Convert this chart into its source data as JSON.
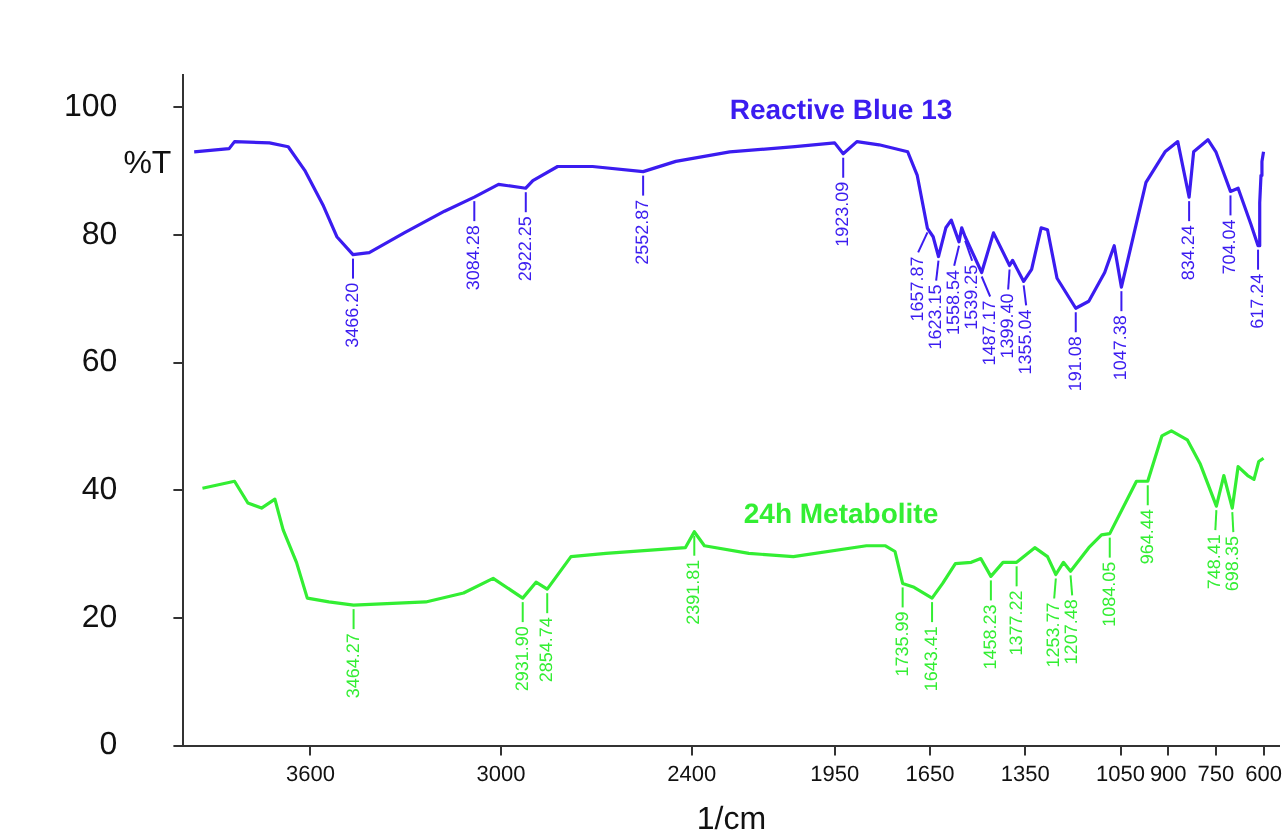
{
  "chart_data": {
    "type": "line",
    "xlabel": "1/cm",
    "ylabel": "%T",
    "xlim": [
      4000,
      550
    ],
    "xticks": [
      3600,
      3000,
      2400,
      1950,
      1650,
      1350,
      1050,
      900,
      750,
      600
    ],
    "ylim": [
      0,
      105
    ],
    "yticks": [
      0,
      20,
      40,
      60,
      80,
      100
    ],
    "grid": false,
    "legend": false,
    "marker": "none",
    "line_style": "solid",
    "series": [
      {
        "name": "Reactive Blue 13",
        "color": "#3b1cf0",
        "x": [
          3966,
          3856,
          3839,
          3729,
          3670,
          3618,
          3559,
          3517,
          3466.2,
          3415,
          3305,
          3178,
          3084.28,
          3008,
          2922.25,
          2900,
          2822,
          2712,
          2552.87,
          2450,
          2280,
          2075,
          1950,
          1923.09,
          1880,
          1810,
          1720,
          1690,
          1657.87,
          1640,
          1623.15,
          1600,
          1583,
          1558.54,
          1550,
          1539.25,
          1487.17,
          1450,
          1399.4,
          1390,
          1355.04,
          1330,
          1300,
          1280,
          1250,
          1191.08,
          1150,
          1100,
          1070,
          1047.38,
          1010,
          970,
          910,
          870,
          834.24,
          820,
          775,
          750,
          704.04,
          680,
          640,
          617.24,
          612,
          608,
          605,
          600
        ],
        "values": [
          93,
          93.5,
          94.6,
          94.4,
          93.8,
          90.1,
          84.5,
          79.7,
          76.9,
          77.2,
          80.3,
          83.7,
          85.9,
          87.9,
          87.3,
          88.5,
          90.7,
          90.7,
          89.9,
          91.5,
          93,
          93.8,
          94.4,
          92.7,
          94.6,
          94.1,
          93,
          89.3,
          81,
          79.7,
          76.6,
          81.1,
          82.3,
          78.9,
          81.1,
          79.7,
          74.1,
          80.3,
          75.2,
          76,
          72.7,
          74.6,
          81.1,
          80.8,
          73.2,
          68.5,
          69.6,
          74.1,
          78.3,
          71.8,
          79.7,
          88.2,
          93,
          94.6,
          85.9,
          93,
          94.9,
          93,
          86.8,
          87.3,
          81.7,
          78.3,
          85,
          89.3,
          91.5,
          93
        ]
      },
      {
        "name": "24h Metabolite",
        "color": "#33ee33",
        "x": [
          3940,
          3839,
          3797,
          3754,
          3712,
          3686,
          3644,
          3610,
          3542,
          3464.27,
          3237,
          3118,
          3025,
          2931.9,
          2890,
          2854.74,
          2780,
          2670,
          2420,
          2391.81,
          2360,
          2220,
          2080,
          1850,
          1790,
          1760,
          1735.99,
          1700,
          1643.41,
          1610,
          1570,
          1520,
          1490,
          1458.23,
          1420,
          1377.22,
          1320,
          1280,
          1253.77,
          1230,
          1207.48,
          1150,
          1110,
          1084.05,
          1000,
          964.44,
          920,
          890,
          840,
          800,
          748.41,
          725,
          698.35,
          680,
          650,
          630,
          615,
          600
        ],
        "values": [
          40.3,
          41.4,
          38,
          37.2,
          38.6,
          33.8,
          28.7,
          23.1,
          22.5,
          22,
          22.5,
          23.9,
          26.2,
          23.1,
          25.6,
          24.5,
          29.6,
          30.1,
          31,
          33.5,
          31.3,
          30.1,
          29.6,
          31.3,
          31.3,
          30.4,
          25.4,
          24.8,
          23.1,
          25.4,
          28.5,
          28.7,
          29.3,
          26.5,
          28.7,
          28.7,
          31,
          29.6,
          26.8,
          28.7,
          27.3,
          31,
          33,
          33.2,
          41.4,
          41.4,
          48.5,
          49.3,
          47.9,
          44.2,
          37.5,
          42.3,
          37.2,
          43.7,
          42.3,
          41.7,
          44.5,
          45
        ]
      }
    ],
    "annotations": [
      {
        "text": "3466.20",
        "x": 3466.2,
        "y": 76.9
      },
      {
        "text": "3084.28",
        "x": 3084.28,
        "y": 85.9
      },
      {
        "text": "2922.25",
        "x": 2922.25,
        "y": 87.3
      },
      {
        "text": "2552.87",
        "x": 2552.87,
        "y": 89.9
      },
      {
        "text": "1923.09",
        "x": 1923.09,
        "y": 92.7
      },
      {
        "text": "1657.87",
        "x": 1657.87,
        "y": 81
      },
      {
        "text": "1623.15",
        "x": 1623.15,
        "y": 76.6
      },
      {
        "text": "1558.54",
        "x": 1558.54,
        "y": 78.9
      },
      {
        "text": "1539.25",
        "x": 1539.25,
        "y": 79.7
      },
      {
        "text": "1487.17",
        "x": 1487.17,
        "y": 74.1
      },
      {
        "text": "1399.40",
        "x": 1399.4,
        "y": 75.2
      },
      {
        "text": "1355.04",
        "x": 1355.04,
        "y": 72.7
      },
      {
        "text": "191.08",
        "x": 1191.08,
        "y": 68.5
      },
      {
        "text": "1047.38",
        "x": 1047.38,
        "y": 71.8
      },
      {
        "text": "834.24",
        "x": 834.24,
        "y": 85.9
      },
      {
        "text": "704.04",
        "x": 704.04,
        "y": 86.8
      },
      {
        "text": "617.24",
        "x": 617.24,
        "y": 78.3
      },
      {
        "text": "3464.27",
        "x": 3464.27,
        "y": 22
      },
      {
        "text": "2931.90",
        "x": 2931.9,
        "y": 23.1
      },
      {
        "text": "2854.74",
        "x": 2854.74,
        "y": 24.5
      },
      {
        "text": "2391.81",
        "x": 2391.81,
        "y": 33.5
      },
      {
        "text": "1735.99",
        "x": 1735.99,
        "y": 25.4
      },
      {
        "text": "1643.41",
        "x": 1643.41,
        "y": 23.1
      },
      {
        "text": "1458.23",
        "x": 1458.23,
        "y": 26.5
      },
      {
        "text": "1377.22",
        "x": 1377.22,
        "y": 28.7
      },
      {
        "text": "1253.77",
        "x": 1253.77,
        "y": 26.8
      },
      {
        "text": "1207.48",
        "x": 1207.48,
        "y": 27.3
      },
      {
        "text": "1084.05",
        "x": 1084.05,
        "y": 33.2
      },
      {
        "text": "964.44",
        "x": 964.44,
        "y": 41.4
      },
      {
        "text": "748.41",
        "x": 748.41,
        "y": 37.5
      },
      {
        "text": "698.35",
        "x": 698.35,
        "y": 37.2
      }
    ]
  }
}
